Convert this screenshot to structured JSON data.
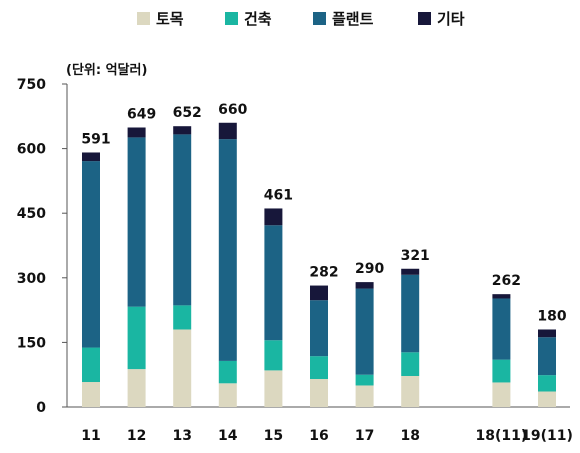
{
  "chart_data": {
    "type": "bar",
    "stacked": true,
    "unit_label": "(단위: 억달러)",
    "categories": [
      "11",
      "12",
      "13",
      "14",
      "15",
      "16",
      "17",
      "18",
      "",
      "18(11)",
      "19(11)"
    ],
    "series": [
      {
        "name": "토목",
        "color": "#dcd8c0",
        "values": [
          58,
          88,
          180,
          55,
          85,
          65,
          50,
          72,
          null,
          57,
          36
        ]
      },
      {
        "name": "건축",
        "color": "#1ab6a2",
        "values": [
          80,
          145,
          56,
          52,
          70,
          53,
          25,
          55,
          null,
          53,
          38
        ]
      },
      {
        "name": "플랜트",
        "color": "#1c6385",
        "values": [
          433,
          393,
          397,
          515,
          267,
          130,
          200,
          180,
          null,
          142,
          88
        ]
      },
      {
        "name": "기타",
        "color": "#17173a",
        "values": [
          20,
          23,
          19,
          38,
          39,
          34,
          15,
          14,
          null,
          10,
          18
        ]
      }
    ],
    "totals": [
      591,
      649,
      652,
      660,
      461,
      282,
      290,
      321,
      null,
      262,
      180
    ],
    "total_labels": [
      "591",
      "649",
      "652",
      "660",
      "461",
      "282",
      "290",
      "321",
      "",
      "262",
      "180"
    ],
    "ylim": [
      0,
      750
    ],
    "y_ticks": [
      0,
      150,
      300,
      450,
      600,
      750
    ],
    "y_tick_labels": [
      "0",
      "150",
      "300",
      "450",
      "600",
      "750"
    ],
    "grid": false,
    "legend_position": "top"
  }
}
